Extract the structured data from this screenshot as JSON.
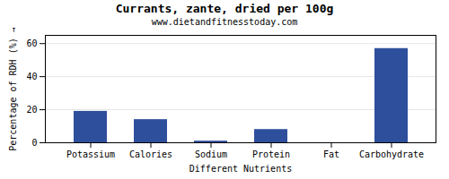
{
  "chart_data": {
    "type": "bar",
    "title": "Currants, zante, dried per 100g",
    "subtitle": "www.dietandfitnesstoday.com",
    "xlabel": "Different Nutrients",
    "ylabel": "Percentage of RDH (%)",
    "categories": [
      "Potassium",
      "Calories",
      "Sodium",
      "Protein",
      "Fat",
      "Carbohydrate"
    ],
    "values": [
      19,
      14,
      1,
      8,
      0,
      57
    ],
    "color": "#2e4f9c",
    "ylim": [
      0,
      65
    ],
    "yticks": [
      0,
      20,
      40,
      60
    ],
    "grid": true
  }
}
